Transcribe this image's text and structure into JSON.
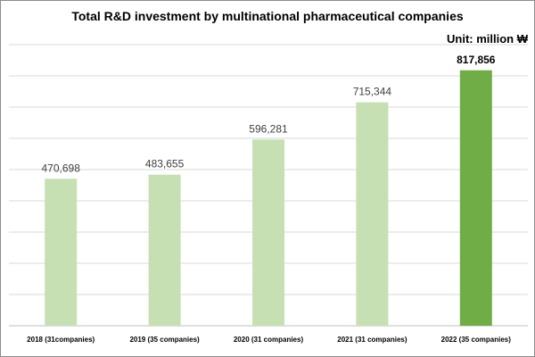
{
  "chart_data": {
    "type": "bar",
    "title": "Total R&D investment by multinational pharmaceutical companies",
    "unit_label": "Unit: million ₩",
    "categories": [
      "2018 (31companies)",
      "2019 (35 companies)",
      "2020 (31 companies)",
      "2021 (31 companies)",
      "2022 (35 companies)"
    ],
    "values": [
      470698,
      483655,
      596281,
      715344,
      817856
    ],
    "value_labels": [
      "470,698",
      "483,655",
      "596,281",
      "715,344",
      "817,856"
    ],
    "highlight_index": 4,
    "ylim": [
      0,
      900000
    ],
    "grid": true,
    "colors": {
      "bar": "#c6e0b4",
      "bar_highlight": "#70ad47",
      "grid": "#d9d9d9",
      "axis": "#bfbfbf"
    }
  }
}
